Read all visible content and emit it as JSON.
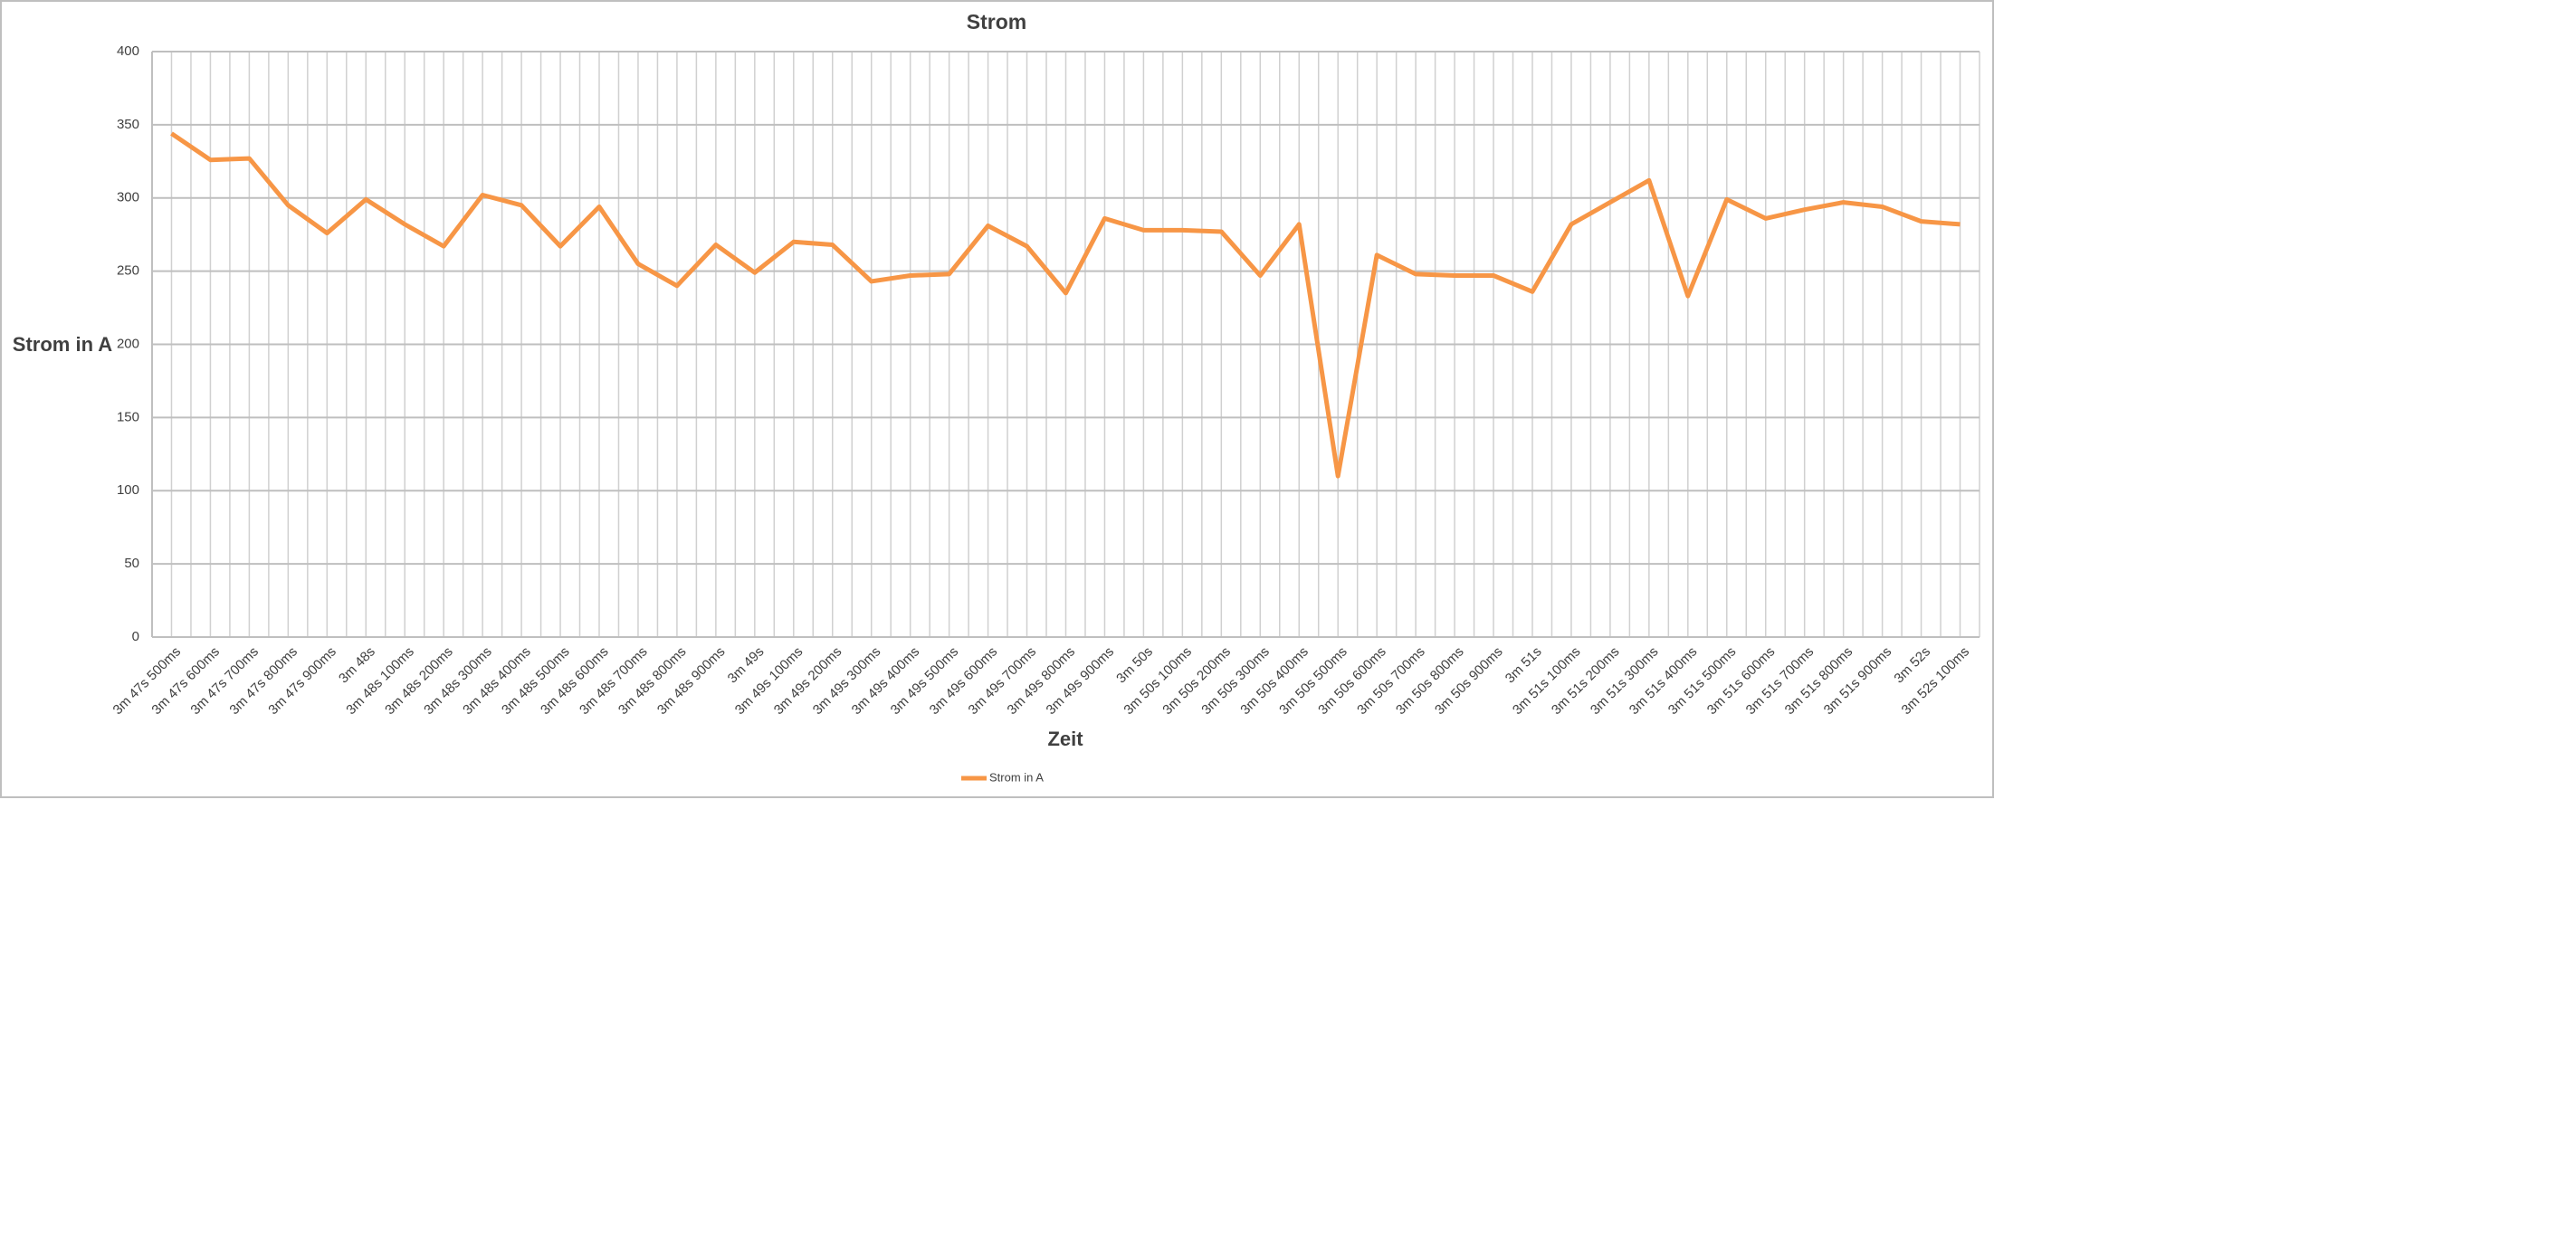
{
  "chart_data": {
    "type": "line",
    "title": "Strom",
    "x_label": "Zeit",
    "y_label": "Strom in A",
    "categories": [
      "3m 47s 500ms",
      "3m 47s 600ms",
      "3m 47s 700ms",
      "3m 47s 800ms",
      "3m 47s 900ms",
      "3m 48s",
      "3m 48s 100ms",
      "3m 48s 200ms",
      "3m 48s 300ms",
      "3m 48s 400ms",
      "3m 48s 500ms",
      "3m 48s 600ms",
      "3m 48s 700ms",
      "3m 48s 800ms",
      "3m 48s 900ms",
      "3m 49s",
      "3m 49s 100ms",
      "3m 49s 200ms",
      "3m 49s 300ms",
      "3m 49s 400ms",
      "3m 49s 500ms",
      "3m 49s 600ms",
      "3m 49s 700ms",
      "3m 49s 800ms",
      "3m 49s 900ms",
      "3m 50s",
      "3m 50s 100ms",
      "3m 50s 200ms",
      "3m 50s 300ms",
      "3m 50s 400ms",
      "3m 50s 500ms",
      "3m 50s 600ms",
      "3m 50s 700ms",
      "3m 50s 800ms",
      "3m 50s 900ms",
      "3m 51s",
      "3m 51s 100ms",
      "3m 51s 200ms",
      "3m 51s 300ms",
      "3m 51s 400ms",
      "3m 51s 500ms",
      "3m 51s 600ms",
      "3m 51s 700ms",
      "3m 51s 800ms",
      "3m 51s 900ms",
      "3m 52s",
      "3m 52s 100ms"
    ],
    "series": [
      {
        "name": "Strom in A",
        "color": "#f79646",
        "values": [
          344,
          326,
          327,
          295,
          276,
          299,
          282,
          267,
          302,
          295,
          267,
          294,
          255,
          240,
          268,
          249,
          270,
          268,
          243,
          247,
          248,
          281,
          267,
          235,
          286,
          278,
          278,
          277,
          247,
          282,
          110,
          261,
          248,
          247,
          247,
          236,
          282,
          297,
          312,
          233,
          299,
          286,
          292,
          297,
          294,
          284,
          282
        ]
      }
    ],
    "ylim": [
      0,
      400
    ],
    "yticks": [
      0,
      50,
      100,
      150,
      200,
      250,
      300,
      350,
      400
    ],
    "grid": true,
    "legend": "bottom"
  }
}
